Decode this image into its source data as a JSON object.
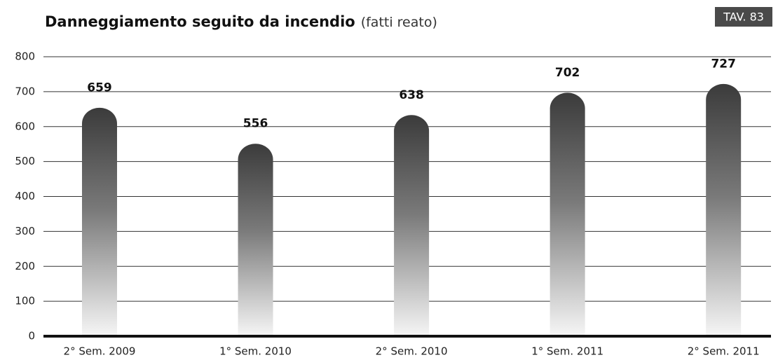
{
  "chart_data": {
    "type": "bar",
    "title": "Danneggiamento seguito da incendio",
    "subtitle": "(fatti reato)",
    "annotation": "TAV. 83",
    "categories": [
      "2° Sem. 2009",
      "1° Sem. 2010",
      "2° Sem. 2010",
      "1° Sem. 2011",
      "2° Sem. 2011"
    ],
    "values": [
      659,
      556,
      638,
      702,
      727
    ],
    "ylim": [
      0,
      800
    ],
    "yticks": [
      0,
      100,
      200,
      300,
      400,
      500,
      600,
      700,
      800
    ],
    "grid": true,
    "color": "#3b3b3b"
  }
}
